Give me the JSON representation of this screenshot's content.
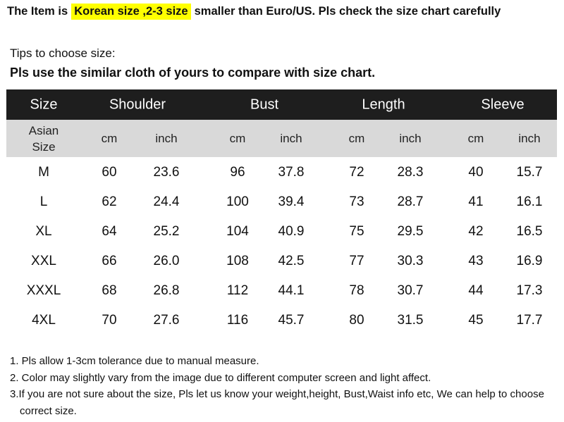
{
  "header": {
    "before": "The Item is",
    "highlight": "Korean size ,2-3 size",
    "after": "smaller than Euro/US. Pls check the size chart carefully"
  },
  "tips": {
    "title": "Tips to choose size:",
    "instruction": "Pls use the similar cloth of yours to compare with size chart."
  },
  "table": {
    "columns": [
      "Size",
      "Shoulder",
      "Bust",
      "Length",
      "Sleeve"
    ],
    "subheader": [
      "Asian Size",
      "cm",
      "inch",
      "cm",
      "inch",
      "cm",
      "inch",
      "cm",
      "inch"
    ],
    "rows": [
      [
        "M",
        "60",
        "23.6",
        "96",
        "37.8",
        "72",
        "28.3",
        "40",
        "15.7"
      ],
      [
        "L",
        "62",
        "24.4",
        "100",
        "39.4",
        "73",
        "28.7",
        "41",
        "16.1"
      ],
      [
        "XL",
        "64",
        "25.2",
        "104",
        "40.9",
        "75",
        "29.5",
        "42",
        "16.5"
      ],
      [
        "XXL",
        "66",
        "26.0",
        "108",
        "42.5",
        "77",
        "30.3",
        "43",
        "16.9"
      ],
      [
        "XXXL",
        "68",
        "26.8",
        "112",
        "44.1",
        "78",
        "30.7",
        "44",
        "17.3"
      ],
      [
        "4XL",
        "70",
        "27.6",
        "116",
        "45.7",
        "80",
        "31.5",
        "45",
        "17.7"
      ]
    ]
  },
  "notes": [
    "1. Pls allow 1-3cm tolerance due to manual measure.",
    "2. Color may slightly vary from the image due to different computer screen and light affect.",
    "3.If you are not sure about the size, Pls let us know your weight,height, Bust,Waist info etc, We can help to choose correct size."
  ]
}
